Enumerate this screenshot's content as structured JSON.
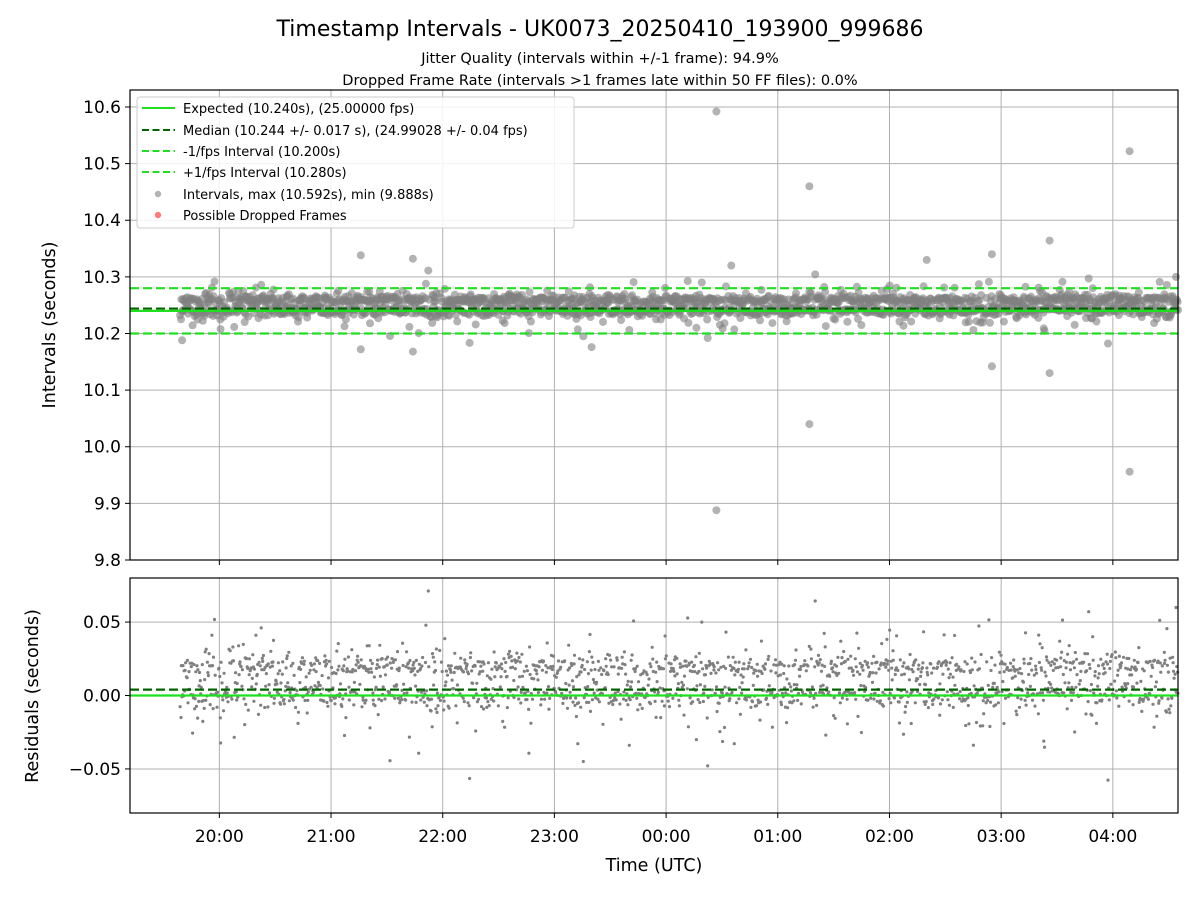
{
  "chart_data": {
    "type": "scatter",
    "title": "Timestamp Intervals - UK0073_20250410_193900_999686",
    "subtitle_lines": [
      "Jitter Quality (intervals within +/-1 frame): 94.9%",
      "Dropped Frame Rate (intervals >1 frames late within 50 FF files): 0.0%"
    ],
    "xlabel": "Time (UTC)",
    "x_ticks": [
      "20:00",
      "21:00",
      "22:00",
      "23:00",
      "00:00",
      "01:00",
      "02:00",
      "03:00",
      "04:00"
    ],
    "x_range": [
      "2025-04-10 19:12",
      "2025-04-11 04:35"
    ],
    "data_start": "2025-04-10 19:39",
    "data_end": "2025-04-11 04:35",
    "grid": true,
    "top_panel": {
      "ylabel": "Intervals (seconds)",
      "ylim": [
        9.8,
        10.63
      ],
      "y_ticks": [
        "9.8",
        "9.9",
        "10.0",
        "10.1",
        "10.2",
        "10.3",
        "10.4",
        "10.5",
        "10.6"
      ],
      "legend_position": "upper-left",
      "legend": [
        {
          "label": "Expected (10.240s), (25.00000 fps)",
          "style": "solid-line",
          "color": "#1fe01f"
        },
        {
          "label": "Median (10.244 +/- 0.017 s), (24.99028 +/- 0.04 fps)",
          "style": "dashed-line",
          "color": "#006400"
        },
        {
          "label": "-1/fps Interval (10.200s)",
          "style": "dashed-line",
          "color": "#1fe01f"
        },
        {
          "label": "+1/fps Interval (10.280s)",
          "style": "dashed-line",
          "color": "#1fe01f"
        },
        {
          "label": "Intervals, max (10.592s), min (9.888s)",
          "style": "marker",
          "color": "#808080"
        },
        {
          "label": "Possible Dropped Frames",
          "style": "marker",
          "color": "#ff5a5a"
        }
      ],
      "lines": {
        "expected": 10.24,
        "median": 10.244,
        "minus_one_fps": 10.2,
        "plus_one_fps": 10.28
      },
      "outliers": [
        {
          "time": "2025-04-11 00:27",
          "interval": 10.592
        },
        {
          "time": "2025-04-11 00:27",
          "interval": 9.888
        },
        {
          "time": "2025-04-11 01:17",
          "interval": 10.46
        },
        {
          "time": "2025-04-11 01:17",
          "interval": 10.04
        },
        {
          "time": "2025-04-11 04:09",
          "interval": 10.522
        },
        {
          "time": "2025-04-11 04:09",
          "interval": 9.956
        },
        {
          "time": "2025-04-11 03:26",
          "interval": 10.364
        },
        {
          "time": "2025-04-11 03:26",
          "interval": 10.13
        },
        {
          "time": "2025-04-11 02:55",
          "interval": 10.34
        },
        {
          "time": "2025-04-11 02:55",
          "interval": 10.142
        },
        {
          "time": "2025-04-10 21:16",
          "interval": 10.338
        },
        {
          "time": "2025-04-10 21:16",
          "interval": 10.172
        },
        {
          "time": "2025-04-10 21:44",
          "interval": 10.332
        },
        {
          "time": "2025-04-10 21:44",
          "interval": 10.168
        },
        {
          "time": "2025-04-10 19:40",
          "interval": 10.188
        },
        {
          "time": "2025-04-10 23:20",
          "interval": 10.176
        },
        {
          "time": "2025-04-11 00:35",
          "interval": 10.32
        },
        {
          "time": "2025-04-11 02:20",
          "interval": 10.33
        }
      ]
    },
    "bottom_panel": {
      "ylabel": "Residuals (seconds)",
      "ylim": [
        -0.08,
        0.08
      ],
      "y_ticks": [
        "−0.05",
        "0.00",
        "0.05"
      ],
      "lines": {
        "zero": 0.0,
        "median": 0.004
      }
    },
    "colors": {
      "expected": "#1fe01f",
      "median": "#006400",
      "points": "#808080",
      "dropped": "#ff5a5a",
      "grid": "#b0b0b0"
    }
  }
}
